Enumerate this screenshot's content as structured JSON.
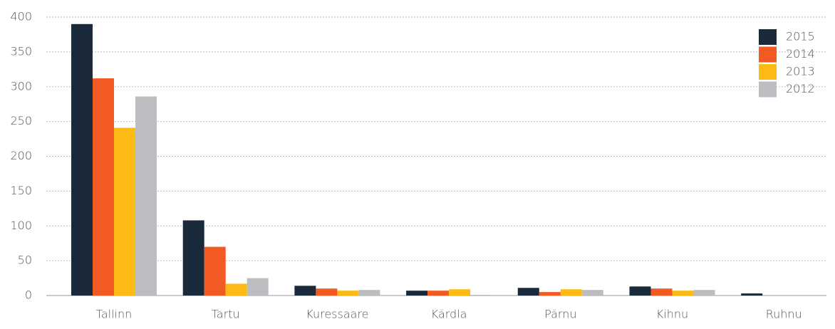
{
  "chart_data": {
    "type": "bar",
    "categories": [
      "Tallinn",
      "Tartu",
      "Kuressaare",
      "Kärdla",
      "Pärnu",
      "Kihnu",
      "Ruhnu"
    ],
    "series": [
      {
        "name": "2015",
        "color": "#1b2a3b",
        "values": [
          390,
          108,
          14,
          7,
          11,
          13,
          3
        ]
      },
      {
        "name": "2014",
        "color": "#f15a22",
        "values": [
          312,
          70,
          10,
          7,
          5,
          10,
          0
        ]
      },
      {
        "name": "2013",
        "color": "#fbbb14",
        "values": [
          241,
          17,
          7,
          9,
          9,
          7,
          0
        ]
      },
      {
        "name": "2012",
        "color": "#bcbdc0",
        "values": [
          286,
          25,
          8,
          1,
          8,
          8,
          0
        ]
      }
    ],
    "ylim": [
      0,
      400
    ],
    "yticks": [
      0,
      50,
      100,
      150,
      200,
      250,
      300,
      350,
      400
    ],
    "grid": true,
    "legend": "upper right"
  }
}
